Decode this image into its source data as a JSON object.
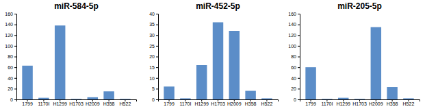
{
  "chart_data": [
    {
      "type": "bar",
      "title": "miR-584-5p",
      "categories": [
        "1799",
        "1170I",
        "H1299",
        "H1703",
        "H2009",
        "H358",
        "H522"
      ],
      "values": [
        63,
        3,
        138,
        1,
        4,
        15,
        1
      ],
      "color": "#5B8DC8",
      "ylim": [
        0,
        160
      ],
      "yticks": [
        0,
        20,
        40,
        60,
        80,
        100,
        120,
        140,
        160
      ],
      "grid": false
    },
    {
      "type": "bar",
      "title": "miR-452-5p",
      "categories": [
        "1799",
        "1170I",
        "H1299",
        "H1703",
        "H2009",
        "H358",
        "H522"
      ],
      "values": [
        6,
        0.5,
        16,
        36,
        32,
        4,
        0.5
      ],
      "color": "#5B8DC8",
      "ylim": [
        0,
        40
      ],
      "yticks": [
        0,
        5,
        10,
        15,
        20,
        25,
        30,
        35,
        40
      ],
      "grid": false
    },
    {
      "type": "bar",
      "title": "miR-205-5p",
      "categories": [
        "1799",
        "1170I",
        "H1299",
        "H1703",
        "H2009",
        "H358",
        "H522"
      ],
      "values": [
        60,
        1,
        3,
        1,
        135,
        23,
        2
      ],
      "color": "#5B8DC8",
      "ylim": [
        0,
        160
      ],
      "yticks": [
        0,
        20,
        40,
        60,
        80,
        100,
        120,
        140,
        160
      ],
      "grid": false
    }
  ]
}
